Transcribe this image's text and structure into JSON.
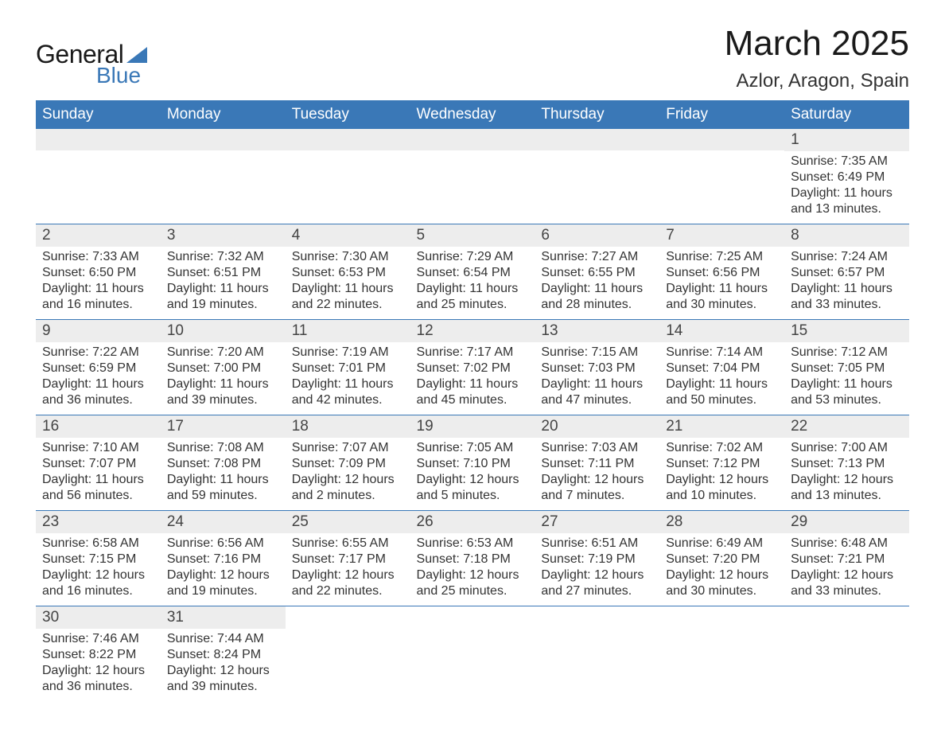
{
  "logo": {
    "text1": "General",
    "text2": "Blue",
    "accent_color": "#3a78b7"
  },
  "title": "March 2025",
  "location": "Azlor, Aragon, Spain",
  "colors": {
    "header_bg": "#3a78b7",
    "header_text": "#ffffff",
    "daynum_bg": "#ededed",
    "border": "#3a78b7",
    "body_text": "#333333",
    "background": "#ffffff"
  },
  "typography": {
    "title_fontsize": 44,
    "location_fontsize": 24,
    "header_fontsize": 19,
    "daynum_fontsize": 19,
    "body_fontsize": 16
  },
  "day_headers": [
    "Sunday",
    "Monday",
    "Tuesday",
    "Wednesday",
    "Thursday",
    "Friday",
    "Saturday"
  ],
  "labels": {
    "sunrise": "Sunrise:",
    "sunset": "Sunset:",
    "daylight": "Daylight:"
  },
  "weeks": [
    [
      null,
      null,
      null,
      null,
      null,
      null,
      {
        "d": "1",
        "sunrise": "7:35 AM",
        "sunset": "6:49 PM",
        "daylight": "11 hours and 13 minutes."
      }
    ],
    [
      {
        "d": "2",
        "sunrise": "7:33 AM",
        "sunset": "6:50 PM",
        "daylight": "11 hours and 16 minutes."
      },
      {
        "d": "3",
        "sunrise": "7:32 AM",
        "sunset": "6:51 PM",
        "daylight": "11 hours and 19 minutes."
      },
      {
        "d": "4",
        "sunrise": "7:30 AM",
        "sunset": "6:53 PM",
        "daylight": "11 hours and 22 minutes."
      },
      {
        "d": "5",
        "sunrise": "7:29 AM",
        "sunset": "6:54 PM",
        "daylight": "11 hours and 25 minutes."
      },
      {
        "d": "6",
        "sunrise": "7:27 AM",
        "sunset": "6:55 PM",
        "daylight": "11 hours and 28 minutes."
      },
      {
        "d": "7",
        "sunrise": "7:25 AM",
        "sunset": "6:56 PM",
        "daylight": "11 hours and 30 minutes."
      },
      {
        "d": "8",
        "sunrise": "7:24 AM",
        "sunset": "6:57 PM",
        "daylight": "11 hours and 33 minutes."
      }
    ],
    [
      {
        "d": "9",
        "sunrise": "7:22 AM",
        "sunset": "6:59 PM",
        "daylight": "11 hours and 36 minutes."
      },
      {
        "d": "10",
        "sunrise": "7:20 AM",
        "sunset": "7:00 PM",
        "daylight": "11 hours and 39 minutes."
      },
      {
        "d": "11",
        "sunrise": "7:19 AM",
        "sunset": "7:01 PM",
        "daylight": "11 hours and 42 minutes."
      },
      {
        "d": "12",
        "sunrise": "7:17 AM",
        "sunset": "7:02 PM",
        "daylight": "11 hours and 45 minutes."
      },
      {
        "d": "13",
        "sunrise": "7:15 AM",
        "sunset": "7:03 PM",
        "daylight": "11 hours and 47 minutes."
      },
      {
        "d": "14",
        "sunrise": "7:14 AM",
        "sunset": "7:04 PM",
        "daylight": "11 hours and 50 minutes."
      },
      {
        "d": "15",
        "sunrise": "7:12 AM",
        "sunset": "7:05 PM",
        "daylight": "11 hours and 53 minutes."
      }
    ],
    [
      {
        "d": "16",
        "sunrise": "7:10 AM",
        "sunset": "7:07 PM",
        "daylight": "11 hours and 56 minutes."
      },
      {
        "d": "17",
        "sunrise": "7:08 AM",
        "sunset": "7:08 PM",
        "daylight": "11 hours and 59 minutes."
      },
      {
        "d": "18",
        "sunrise": "7:07 AM",
        "sunset": "7:09 PM",
        "daylight": "12 hours and 2 minutes."
      },
      {
        "d": "19",
        "sunrise": "7:05 AM",
        "sunset": "7:10 PM",
        "daylight": "12 hours and 5 minutes."
      },
      {
        "d": "20",
        "sunrise": "7:03 AM",
        "sunset": "7:11 PM",
        "daylight": "12 hours and 7 minutes."
      },
      {
        "d": "21",
        "sunrise": "7:02 AM",
        "sunset": "7:12 PM",
        "daylight": "12 hours and 10 minutes."
      },
      {
        "d": "22",
        "sunrise": "7:00 AM",
        "sunset": "7:13 PM",
        "daylight": "12 hours and 13 minutes."
      }
    ],
    [
      {
        "d": "23",
        "sunrise": "6:58 AM",
        "sunset": "7:15 PM",
        "daylight": "12 hours and 16 minutes."
      },
      {
        "d": "24",
        "sunrise": "6:56 AM",
        "sunset": "7:16 PM",
        "daylight": "12 hours and 19 minutes."
      },
      {
        "d": "25",
        "sunrise": "6:55 AM",
        "sunset": "7:17 PM",
        "daylight": "12 hours and 22 minutes."
      },
      {
        "d": "26",
        "sunrise": "6:53 AM",
        "sunset": "7:18 PM",
        "daylight": "12 hours and 25 minutes."
      },
      {
        "d": "27",
        "sunrise": "6:51 AM",
        "sunset": "7:19 PM",
        "daylight": "12 hours and 27 minutes."
      },
      {
        "d": "28",
        "sunrise": "6:49 AM",
        "sunset": "7:20 PM",
        "daylight": "12 hours and 30 minutes."
      },
      {
        "d": "29",
        "sunrise": "6:48 AM",
        "sunset": "7:21 PM",
        "daylight": "12 hours and 33 minutes."
      }
    ],
    [
      {
        "d": "30",
        "sunrise": "7:46 AM",
        "sunset": "8:22 PM",
        "daylight": "12 hours and 36 minutes."
      },
      {
        "d": "31",
        "sunrise": "7:44 AM",
        "sunset": "8:24 PM",
        "daylight": "12 hours and 39 minutes."
      },
      null,
      null,
      null,
      null,
      null
    ]
  ]
}
